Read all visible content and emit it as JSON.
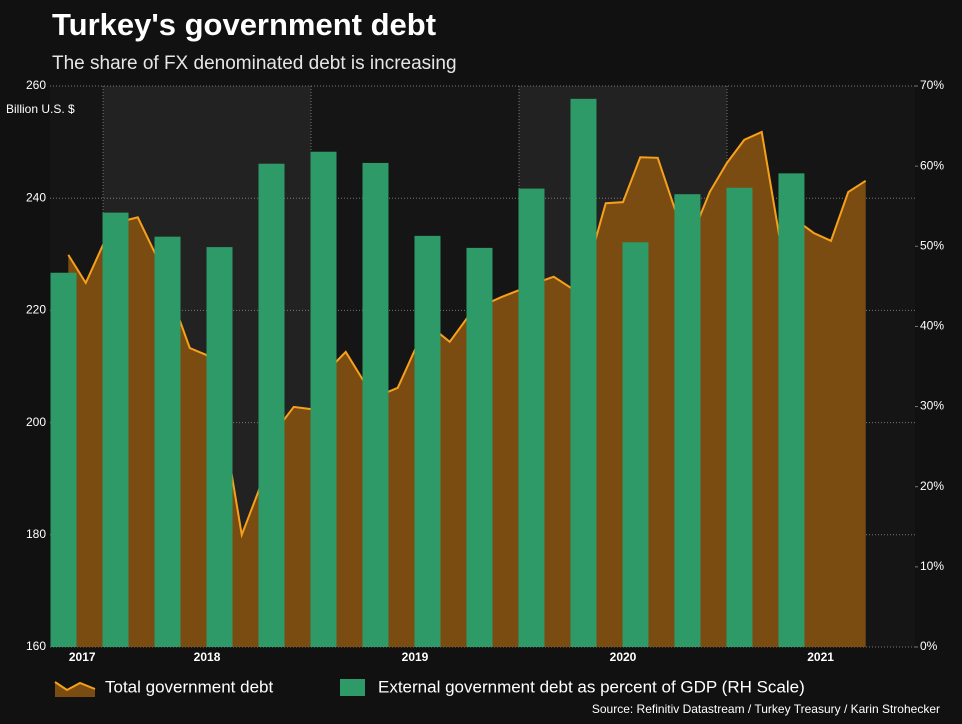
{
  "chart_data": {
    "type": "combo",
    "title": "Turkey's government debt",
    "subtitle": "The share of FX denominated debt is increasing",
    "ylabel": "Billion U.S. $",
    "source": "Source: Refinitiv Datastream / Turkey Treasury / Karin Strohecker",
    "xlim": [
      2017.745,
      2021.904
    ],
    "xticks": [
      {
        "value": 2017.9,
        "label": "2017"
      },
      {
        "value": 2018.5,
        "label": "2018"
      },
      {
        "value": 2019.5,
        "label": "2019"
      },
      {
        "value": 2020.5,
        "label": "2020"
      },
      {
        "value": 2021.45,
        "label": "2021"
      }
    ],
    "xgrid": [
      2018,
      2019,
      2020,
      2021
    ],
    "ylim": [
      160,
      260
    ],
    "yticks": [
      160,
      180,
      200,
      220,
      240,
      260
    ],
    "y2lim": [
      0,
      70
    ],
    "y2ticks": [
      {
        "value": 0,
        "label": "0%"
      },
      {
        "value": 10,
        "label": "10%"
      },
      {
        "value": 20,
        "label": "20%"
      },
      {
        "value": 30,
        "label": "30%"
      },
      {
        "value": 40,
        "label": "40%"
      },
      {
        "value": 50,
        "label": "50%"
      },
      {
        "value": 60,
        "label": "60%"
      },
      {
        "value": 70,
        "label": "70%"
      }
    ],
    "grid": true,
    "series": [
      {
        "name": "Total government debt",
        "type": "area",
        "color": "#f7a11a",
        "fill": "#7a4c12",
        "x": [
          2017.833,
          2017.917,
          2018.0,
          2018.083,
          2018.167,
          2018.25,
          2018.333,
          2018.417,
          2018.5,
          2018.583,
          2018.667,
          2018.75,
          2018.833,
          2018.917,
          2019.0,
          2019.083,
          2019.167,
          2019.25,
          2019.333,
          2019.417,
          2019.5,
          2019.583,
          2019.667,
          2019.75,
          2019.833,
          2019.917,
          2020.0,
          2020.083,
          2020.167,
          2020.25,
          2020.333,
          2020.417,
          2020.5,
          2020.583,
          2020.667,
          2020.75,
          2020.833,
          2020.917,
          2021.0,
          2021.083,
          2021.167,
          2021.25,
          2021.333,
          2021.417,
          2021.5,
          2021.583,
          2021.667
        ],
        "values": [
          229.9,
          224.9,
          231.7,
          235.8,
          236.6,
          230.2,
          221.9,
          213.3,
          212.0,
          198.7,
          180.0,
          188.0,
          198.7,
          202.8,
          202.4,
          209.4,
          212.6,
          207.6,
          204.9,
          206.2,
          213.0,
          216.9,
          214.4,
          218.6,
          221.0,
          222.4,
          223.6,
          224.9,
          226.0,
          224.0,
          228.0,
          239.1,
          239.3,
          247.3,
          247.2,
          238.0,
          233.4,
          241.1,
          246.3,
          250.4,
          251.8,
          233.6,
          236.1,
          233.8,
          232.4,
          241.1,
          243.1
        ]
      },
      {
        "name": "External government debt as percent of GDP (RH Scale)",
        "type": "bar",
        "axis": "y2",
        "color": "#2e9a68",
        "x": [
          2017.81,
          2018.06,
          2018.31,
          2018.56,
          2018.81,
          2019.06,
          2019.31,
          2019.56,
          2019.81,
          2020.06,
          2020.31,
          2020.56,
          2020.81,
          2021.06,
          2021.31
        ],
        "values": [
          46.7,
          54.2,
          51.2,
          49.9,
          60.3,
          61.8,
          60.4,
          51.3,
          49.8,
          57.2,
          68.4,
          50.5,
          56.5,
          57.3,
          59.1
        ]
      }
    ]
  }
}
